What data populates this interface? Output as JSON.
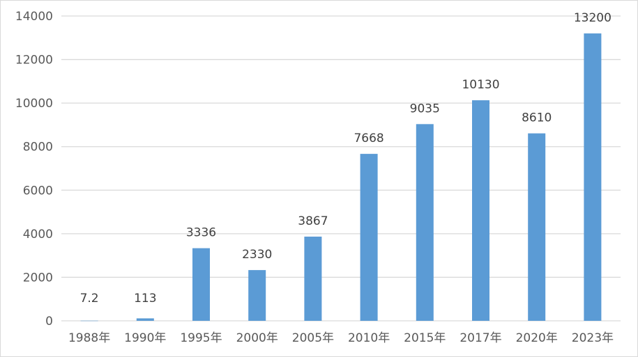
{
  "chart_data": {
    "type": "bar",
    "categories": [
      "1988年",
      "1990年",
      "1995年",
      "2000年",
      "2005年",
      "2010年",
      "2015年",
      "2017年",
      "2020年",
      "2023年"
    ],
    "values": [
      7.2,
      113,
      3336,
      2330,
      3867,
      7668,
      9035,
      10130,
      8610,
      13200
    ],
    "data_labels": [
      "7.2",
      "113",
      "3336",
      "2330",
      "3867",
      "7668",
      "9035",
      "10130",
      "8610",
      "13200"
    ],
    "yticks": [
      0,
      2000,
      4000,
      6000,
      8000,
      10000,
      12000,
      14000
    ],
    "ylim": [
      0,
      14000
    ],
    "title": "",
    "xlabel": "",
    "ylabel": "",
    "grid": true,
    "legend": "none",
    "colors": {
      "bar": "#5b9bd5",
      "grid": "#d9d9d9",
      "axis_text": "#595959",
      "label_text": "#404040",
      "border": "#d9d9d9"
    }
  }
}
